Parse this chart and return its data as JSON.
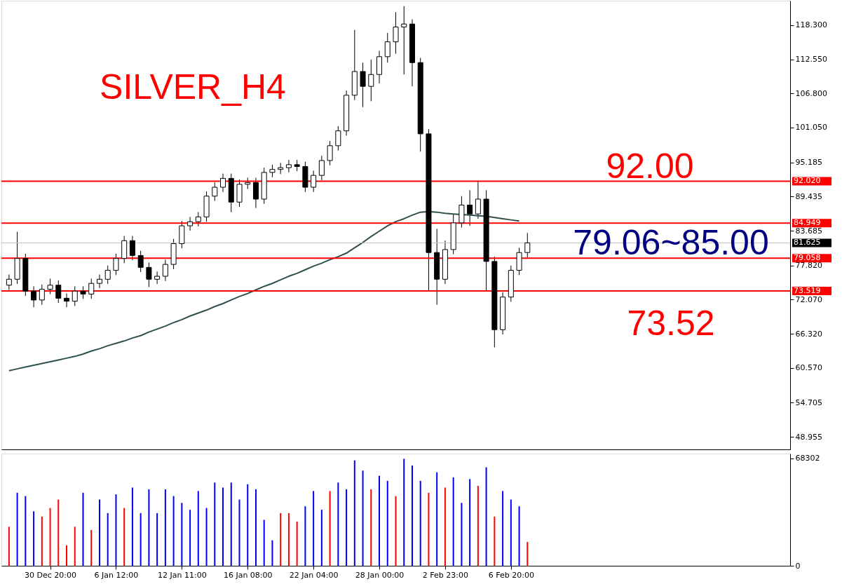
{
  "chart_data": [
    {
      "type": "candlestick",
      "title": "SILVER_H4",
      "categories": [
        null,
        null,
        null,
        null,
        null,
        null,
        null,
        null,
        null,
        null,
        null,
        null,
        null,
        null,
        null,
        null,
        null,
        null,
        null,
        null,
        null,
        null,
        null,
        null,
        null,
        null,
        null,
        null,
        null,
        null,
        null,
        null,
        null,
        null,
        null,
        null,
        null,
        null,
        null,
        null,
        null,
        null,
        null,
        null,
        null,
        null,
        null,
        null,
        null,
        null,
        null,
        null,
        null,
        null,
        null,
        null,
        null,
        null,
        null,
        null,
        null,
        null,
        null,
        null,
        null,
        null,
        null,
        null,
        null,
        null,
        null,
        null,
        null,
        null,
        null,
        null,
        null,
        null,
        null,
        null,
        null,
        null,
        null,
        null,
        null,
        null,
        null,
        null,
        null,
        null,
        null,
        null,
        null,
        null,
        null
      ],
      "ohlc": [
        [
          74.5,
          76.3,
          73.7,
          75.5
        ],
        [
          75.5,
          83.5,
          74.7,
          79
        ],
        [
          79,
          79.8,
          72.7,
          73.5
        ],
        [
          73.5,
          74.3,
          70.8,
          72
        ],
        [
          72,
          74.6,
          71.2,
          73.8
        ],
        [
          73.8,
          75.6,
          73,
          74.5
        ],
        [
          74.5,
          75.3,
          71.5,
          72.3
        ],
        [
          72.3,
          73.1,
          70.8,
          71.8
        ],
        [
          71.8,
          74.3,
          71,
          73.5
        ],
        [
          73.5,
          74.3,
          72.2,
          73
        ],
        [
          73,
          75.6,
          72.2,
          74.8
        ],
        [
          74.8,
          76.3,
          74,
          75.5
        ],
        [
          75.5,
          77.8,
          74.7,
          77
        ],
        [
          77,
          79.8,
          76.2,
          79
        ],
        [
          79,
          82.8,
          78.2,
          82
        ],
        [
          82,
          82.8,
          78.7,
          79.5
        ],
        [
          79.5,
          80.3,
          76.7,
          77.5
        ],
        [
          77.5,
          78.3,
          74.2,
          75.5
        ],
        [
          75.5,
          76.8,
          74.7,
          76
        ],
        [
          76,
          78.8,
          75.2,
          78
        ],
        [
          78,
          82.3,
          77.2,
          81.5
        ],
        [
          81.5,
          85.3,
          80.7,
          84.5
        ],
        [
          84.5,
          86,
          83.7,
          85.2
        ],
        [
          85.2,
          86.8,
          84.4,
          86
        ],
        [
          86,
          90.3,
          85.2,
          89.5
        ],
        [
          89.5,
          91.8,
          88.7,
          91
        ],
        [
          91,
          93.3,
          90.2,
          92.5
        ],
        [
          92.5,
          93.3,
          86.8,
          88.5
        ],
        [
          88.5,
          92.3,
          87.7,
          91.5
        ],
        [
          91.5,
          92.6,
          90.7,
          91.8
        ],
        [
          91.8,
          92.6,
          87.5,
          89
        ],
        [
          89,
          94.3,
          88.2,
          93.5
        ],
        [
          93.5,
          94.8,
          92.7,
          94
        ],
        [
          94,
          95.1,
          93.2,
          94.3
        ],
        [
          94.3,
          95.6,
          93.5,
          94.8
        ],
        [
          94.8,
          95.6,
          93.7,
          94.5
        ],
        [
          94.5,
          95.3,
          90.2,
          91
        ],
        [
          91,
          93.8,
          90.2,
          93
        ],
        [
          93,
          96.3,
          92.2,
          95.5
        ],
        [
          95.5,
          98.8,
          94.7,
          98
        ],
        [
          98,
          101.3,
          97.2,
          100.5
        ],
        [
          100.5,
          107.3,
          99.7,
          106.5
        ],
        [
          106.5,
          117.5,
          105.7,
          110.5
        ],
        [
          110.5,
          112,
          104.5,
          108
        ],
        [
          108,
          112.5,
          105.5,
          110
        ],
        [
          110,
          114,
          108.5,
          113
        ],
        [
          113,
          117,
          112,
          115.5
        ],
        [
          115.5,
          120.5,
          113.5,
          118
        ],
        [
          118,
          121.5,
          110,
          118.5
        ],
        [
          118.5,
          119.3,
          108,
          112
        ],
        [
          112,
          112.8,
          97,
          100
        ],
        [
          100,
          100.8,
          73.5,
          80
        ],
        [
          80,
          84,
          71.2,
          75.5
        ],
        [
          75.5,
          82,
          74.7,
          80.5
        ],
        [
          80.5,
          86.5,
          79.7,
          85
        ],
        [
          85,
          89.5,
          84.2,
          88
        ],
        [
          88,
          90.5,
          84.5,
          86.5
        ],
        [
          86.5,
          92.1,
          85.7,
          89
        ],
        [
          89,
          90.5,
          73.5,
          78.5
        ],
        [
          78.5,
          79.3,
          64.05,
          67
        ],
        [
          67,
          73.3,
          66.2,
          72.5
        ],
        [
          72.5,
          77.8,
          71.7,
          77
        ],
        [
          77,
          80.8,
          76.2,
          80
        ],
        [
          80,
          83.3,
          79.2,
          81.625
        ],
        null,
        null,
        null,
        null,
        null,
        null,
        null,
        null,
        null,
        null,
        null,
        null,
        null,
        null,
        null,
        null,
        null,
        null,
        null,
        null,
        null,
        null,
        null,
        null,
        null,
        null,
        null,
        null,
        null,
        null,
        null
      ],
      "series": [
        {
          "type": "line",
          "color": "#2f4f4f",
          "values": [
            60.1,
            60.4,
            60.7,
            61.0,
            61.3,
            61.6,
            61.9,
            62.2,
            62.5,
            62.9,
            63.4,
            63.8,
            64.3,
            64.7,
            65.1,
            65.6,
            66.0,
            66.6,
            67.1,
            67.6,
            68.2,
            68.7,
            69.3,
            69.8,
            70.3,
            70.9,
            71.4,
            72.0,
            72.6,
            73.1,
            73.7,
            74.3,
            74.8,
            75.4,
            76.0,
            76.5,
            77.1,
            77.7,
            78.2,
            78.8,
            79.3,
            79.9,
            80.8,
            81.7,
            82.7,
            83.6,
            84.5,
            85.2,
            85.7,
            86.3,
            86.8,
            86.9,
            86.8,
            86.6,
            86.5,
            86.4,
            86.3,
            86.2,
            86.1,
            85.9,
            85.7,
            85.5,
            85.3,
            null,
            null,
            null,
            null,
            null,
            null,
            null,
            null,
            null,
            null,
            null,
            null,
            null,
            null,
            null,
            null,
            null,
            null,
            null,
            null,
            null,
            null,
            null,
            null,
            null,
            null,
            null,
            null,
            null,
            null,
            null,
            null
          ]
        }
      ],
      "ylim": [
        46.83,
        122.43
      ],
      "yticks": [
        {
          "value": 118.3,
          "label": "118.300"
        },
        {
          "value": 112.55,
          "label": "112.550"
        },
        {
          "value": 106.8,
          "label": "106.800"
        },
        {
          "value": 101.05,
          "label": "101.050"
        },
        {
          "value": 95.185,
          "label": "95.185"
        },
        {
          "value": 89.435,
          "label": "89.435"
        },
        {
          "value": 83.685,
          "label": "83.685"
        },
        {
          "value": 77.82,
          "label": "77.820"
        },
        {
          "value": 72.07,
          "label": "72.070"
        },
        {
          "value": 66.32,
          "label": "66.320"
        },
        {
          "value": 60.57,
          "label": "60.570"
        },
        {
          "value": 54.705,
          "label": "54.705"
        },
        {
          "value": 48.955,
          "label": "48.955"
        }
      ],
      "ref_lines": [
        {
          "axis": "y",
          "value": 92.02,
          "label": "92.020",
          "color": "#ff0000"
        },
        {
          "axis": "y",
          "value": 84.949,
          "label": "84.949",
          "color": "#ff0000"
        },
        {
          "axis": "y",
          "value": 81.625,
          "label": "81.625",
          "color": "#c0c0c0"
        },
        {
          "axis": "y",
          "value": 79.058,
          "label": "79.058",
          "color": "#ff0000"
        },
        {
          "axis": "y",
          "value": 73.519,
          "label": "73.519",
          "color": "#ff0000"
        }
      ],
      "annotations": [
        "92.00",
        "79.06~85.00",
        "73.52"
      ],
      "tick_labels": "y",
      "grid": false
    },
    {
      "type": "bar",
      "categories": [
        null,
        null,
        null,
        null,
        null,
        "30 Dec 20:00",
        null,
        null,
        null,
        null,
        null,
        null,
        null,
        "6 Jan 12:00",
        null,
        null,
        null,
        null,
        null,
        null,
        null,
        "12 Jan 11:00",
        null,
        null,
        null,
        null,
        null,
        null,
        null,
        "16 Jan 08:00",
        null,
        null,
        null,
        null,
        null,
        null,
        null,
        "22 Jan 04:00",
        null,
        null,
        null,
        null,
        null,
        null,
        null,
        "28 Jan 00:00",
        null,
        null,
        null,
        null,
        null,
        null,
        null,
        "2 Feb 23:00",
        null,
        null,
        null,
        null,
        null,
        null,
        null,
        "6 Feb 20:00",
        null,
        null,
        null,
        null,
        null,
        null,
        null,
        null,
        null,
        null,
        null,
        null,
        null,
        null,
        null,
        null,
        null,
        null,
        null,
        null,
        null,
        null,
        null,
        null,
        null,
        null,
        null,
        null,
        null,
        null,
        null,
        null,
        null
      ],
      "values": [
        24800,
        46400,
        44300,
        34600,
        31300,
        36700,
        42100,
        13000,
        24800,
        46400,
        22700,
        42100,
        33500,
        45400,
        36700,
        49700,
        33500,
        48600,
        33500,
        48600,
        44300,
        40000,
        35600,
        47500,
        36700,
        52900,
        49700,
        52900,
        42100,
        51800,
        48600,
        29200,
        16200,
        33500,
        33500,
        28100,
        37800,
        47500,
        35600,
        47500,
        52900,
        48600,
        67000,
        60500,
        48600,
        57200,
        54000,
        44300,
        68000,
        63700,
        54000,
        46400,
        59400,
        49700,
        56200,
        40000,
        55100,
        50800,
        62600,
        31300,
        47500,
        42100,
        37800,
        15100,
        null,
        null,
        null,
        null,
        null,
        null,
        null,
        null,
        null,
        null,
        null,
        null,
        null,
        null,
        null,
        null,
        null,
        null,
        null,
        null,
        null,
        null,
        null,
        null,
        null,
        null,
        null,
        null,
        null,
        null,
        null
      ],
      "colors": [
        "#ff0000",
        "#0000ff",
        "#0000ff",
        "#0000ff",
        "#ff0000",
        "#ff0000",
        "#ff0000",
        "#ff0000",
        "#ff0000",
        "#0000ff",
        "#ff0000",
        "#0000ff",
        "#0000ff",
        "#0000ff",
        "#ff0000",
        "#0000ff",
        "#0000ff",
        "#0000ff",
        "#0000ff",
        "#0000ff",
        "#0000ff",
        "#0000ff",
        "#0000ff",
        "#0000ff",
        "#0000ff",
        "#0000ff",
        "#0000ff",
        "#0000ff",
        "#0000ff",
        "#0000ff",
        "#0000ff",
        "#0000ff",
        "#0000ff",
        "#ff0000",
        "#ff0000",
        "#ff0000",
        "#0000ff",
        "#0000ff",
        "#0000ff",
        "#ff0000",
        "#0000ff",
        "#0000ff",
        "#0000ff",
        "#0000ff",
        "#ff0000",
        "#0000ff",
        "#0000ff",
        "#ff0000",
        "#0000ff",
        "#0000ff",
        "#0000ff",
        "#ff0000",
        "#0000ff",
        "#ff0000",
        "#0000ff",
        "#0000ff",
        "#0000ff",
        "#ff0000",
        "#0000ff",
        "#ff0000",
        "#0000ff",
        "#0000ff",
        "#0000ff",
        "#ff0000",
        null,
        null,
        null,
        null,
        null,
        null,
        null,
        null,
        null,
        null,
        null,
        null,
        null,
        null,
        null,
        null,
        null,
        null,
        null,
        null,
        null,
        null,
        null,
        null,
        null,
        null,
        null,
        null,
        null,
        null,
        null
      ],
      "ylim": [
        0,
        71300
      ],
      "yticks": [
        0,
        {
          "value": 68302,
          "label": "68302"
        }
      ],
      "grid": false
    }
  ]
}
